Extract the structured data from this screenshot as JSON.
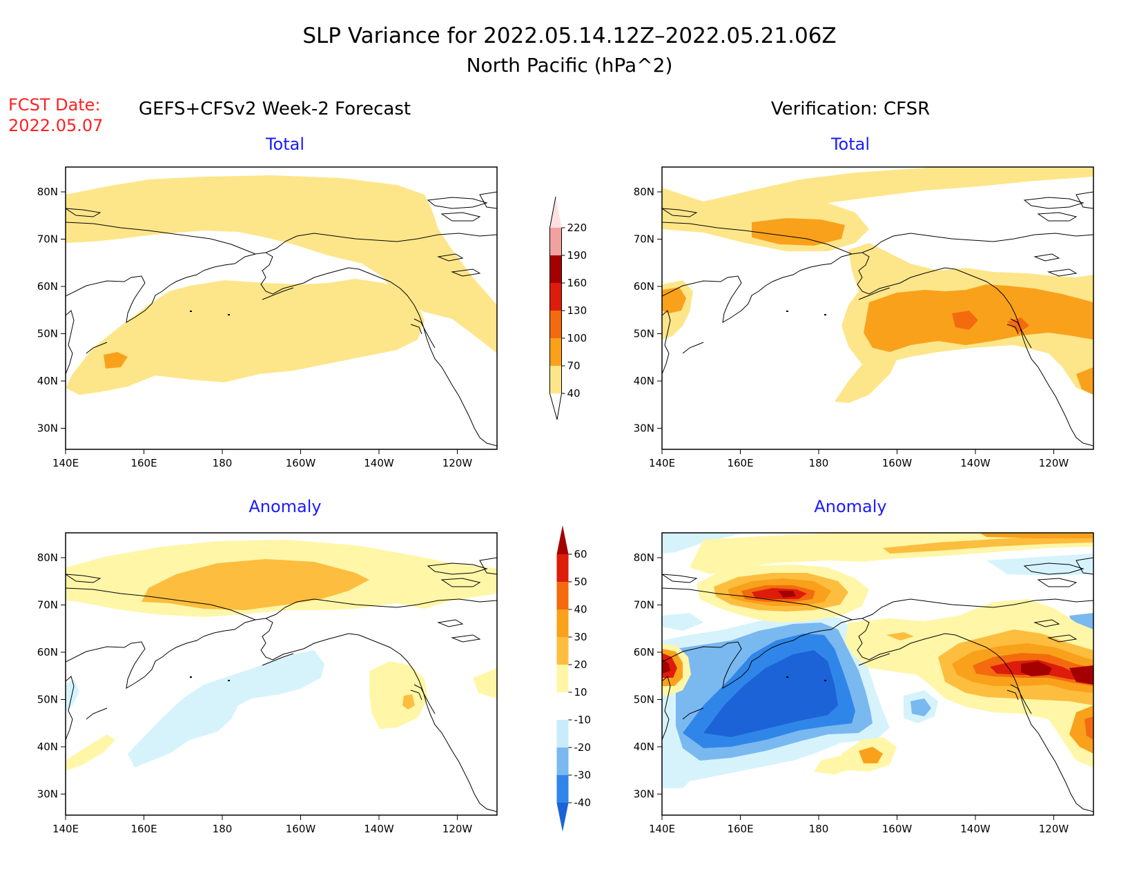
{
  "title_line1": "SLP Variance for 2022.05.14.12Z–2022.05.21.06Z",
  "title_line2": "North Pacific (hPa^2)",
  "fcst_date_label": "FCST Date:",
  "fcst_date_value": "2022.05.07",
  "left_header": "GEFS+CFSv2 Week-2 Forecast",
  "right_header": "Verification: CFSR",
  "panel_total": "Total",
  "panel_anomaly": "Anomaly",
  "lat_ticks": [
    "80N",
    "70N",
    "60N",
    "50N",
    "40N",
    "30N"
  ],
  "lon_ticks": [
    "140E",
    "160E",
    "180",
    "160W",
    "140W",
    "120W"
  ],
  "total_colorbar": {
    "labels": [
      "40",
      "70",
      "100",
      "130",
      "160",
      "190",
      "220"
    ],
    "colors": [
      "#fde68a",
      "#f9a11b",
      "#f36b0e",
      "#dd1c0c",
      "#a50000",
      "#f2a1a1",
      "#fde0e0"
    ]
  },
  "anomaly_colorbar": {
    "labels": [
      "-40",
      "-30",
      "-20",
      "-10",
      "10",
      "20",
      "30",
      "40",
      "50",
      "60"
    ],
    "colors": [
      "#1b63d6",
      "#2f86e8",
      "#7ab8f0",
      "#c9ecfa",
      "#ffffff",
      "#fff6a8",
      "#fdbd3e",
      "#f9a11b",
      "#f36b0e",
      "#dd1c0c",
      "#a50000"
    ]
  }
}
